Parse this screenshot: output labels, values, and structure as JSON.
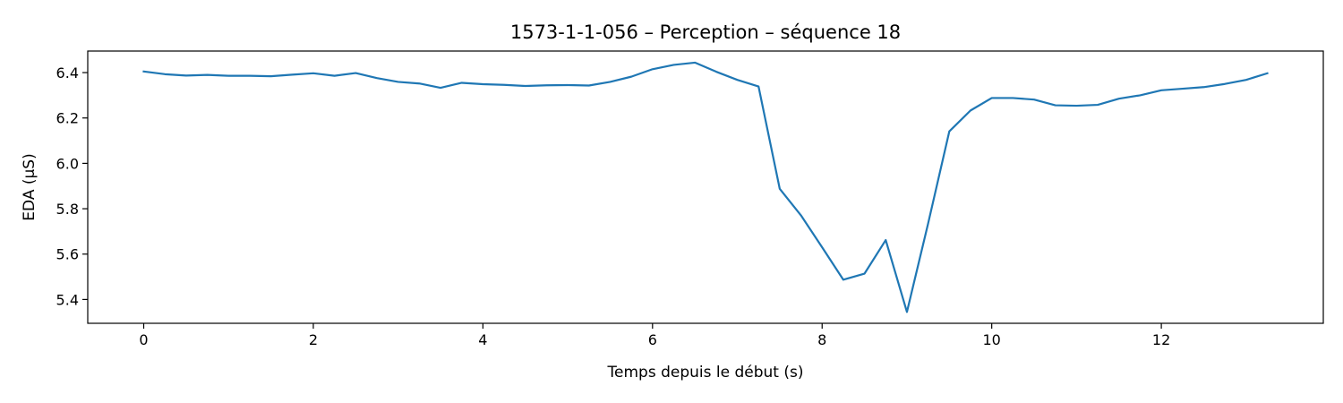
{
  "chart_data": {
    "type": "line",
    "title": "1573-1-1-056 – Perception – séquence 18",
    "xlabel": "Temps depuis le début (s)",
    "ylabel": "EDA (µS)",
    "xlim": [
      -0.66,
      13.91
    ],
    "ylim": [
      5.295,
      6.495
    ],
    "xticks": [
      0,
      2,
      4,
      6,
      8,
      10,
      12
    ],
    "yticks": [
      5.4,
      5.6,
      5.8,
      6.0,
      6.2,
      6.4
    ],
    "xtick_labels": [
      "0",
      "2",
      "4",
      "6",
      "8",
      "10",
      "12"
    ],
    "ytick_labels": [
      "5.4",
      "5.6",
      "5.8",
      "6.0",
      "6.2",
      "6.4"
    ],
    "grid": false,
    "line_color": "#1f77b4",
    "series": [
      {
        "x": [
          0,
          0.25,
          0.5,
          0.75,
          1.0,
          1.25,
          1.5,
          1.75,
          2.0,
          2.25,
          2.5,
          2.75,
          3.0,
          3.25,
          3.5,
          3.75,
          4.0,
          4.25,
          4.5,
          4.75,
          5.0,
          5.25,
          5.5,
          5.75,
          6.0,
          6.25,
          6.5,
          6.75,
          7.0,
          7.25,
          7.5,
          7.75,
          8.0,
          8.25,
          8.5,
          8.75,
          9.0,
          9.25,
          9.5,
          9.75,
          10.0,
          10.25,
          10.5,
          10.75,
          11.0,
          11.25,
          11.5,
          11.75,
          12.0,
          12.25,
          12.5,
          12.75,
          13.0,
          13.25
        ],
        "values": [
          6.405,
          6.393,
          6.387,
          6.39,
          6.386,
          6.386,
          6.384,
          6.391,
          6.397,
          6.386,
          6.398,
          6.376,
          6.359,
          6.352,
          6.333,
          6.355,
          6.349,
          6.346,
          6.341,
          6.344,
          6.345,
          6.343,
          6.359,
          6.382,
          6.415,
          6.434,
          6.444,
          6.404,
          6.368,
          6.339,
          5.888,
          5.771,
          5.63,
          5.487,
          5.514,
          5.662,
          5.345,
          5.735,
          6.141,
          6.233,
          6.288,
          6.288,
          6.281,
          6.256,
          6.254,
          6.258,
          6.285,
          6.3,
          6.322,
          6.329,
          6.336,
          6.35,
          6.368,
          6.397
        ]
      }
    ]
  }
}
